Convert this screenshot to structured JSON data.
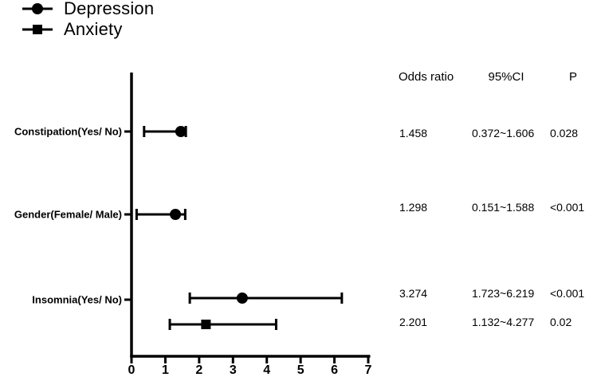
{
  "colors": {
    "foreground": "#000000",
    "background": "#ffffff"
  },
  "legend": {
    "position": "top-left",
    "items": [
      {
        "label": "Depression",
        "marker": "circle"
      },
      {
        "label": "Anxiety",
        "marker": "square"
      }
    ]
  },
  "table": {
    "headers": [
      "Odds ratio",
      "95%CI",
      "P"
    ],
    "rows": [
      {
        "odds_ratio": "1.458",
        "ci": "0.372~1.606",
        "p": "0.028"
      },
      {
        "odds_ratio": "1.298",
        "ci": "0.151~1.588",
        "p": "<0.001"
      },
      {
        "odds_ratio": "3.274",
        "ci": "1.723~6.219",
        "p": "<0.001"
      },
      {
        "odds_ratio": "2.201",
        "ci": "1.132~4.277",
        "p": "0.02"
      }
    ]
  },
  "chart_data": {
    "type": "scatter",
    "subtype": "forest-plot",
    "title": "",
    "xlabel": "",
    "ylabel": "",
    "xlim": [
      0,
      7
    ],
    "x_ticks": [
      0,
      1,
      2,
      3,
      4,
      5,
      6,
      7
    ],
    "grid": false,
    "legend_position": "top-left",
    "categories": [
      "Constipation(Yes/ No)",
      "Gender(Female/ Male)",
      "Insomnia(Yes/ No)"
    ],
    "points": [
      {
        "category": "Constipation(Yes/ No)",
        "series": "Depression",
        "marker": "circle",
        "odds_ratio": 1.458,
        "ci_low": 0.372,
        "ci_high": 1.606,
        "p": "0.028"
      },
      {
        "category": "Gender(Female/ Male)",
        "series": "Depression",
        "marker": "circle",
        "odds_ratio": 1.298,
        "ci_low": 0.151,
        "ci_high": 1.588,
        "p": "<0.001"
      },
      {
        "category": "Insomnia(Yes/ No)",
        "series": "Depression",
        "marker": "circle",
        "odds_ratio": 3.274,
        "ci_low": 1.723,
        "ci_high": 6.219,
        "p": "<0.001"
      },
      {
        "category": "Insomnia(Yes/ No)",
        "series": "Anxiety",
        "marker": "square",
        "odds_ratio": 2.201,
        "ci_low": 1.132,
        "ci_high": 4.277,
        "p": "0.02"
      }
    ]
  }
}
